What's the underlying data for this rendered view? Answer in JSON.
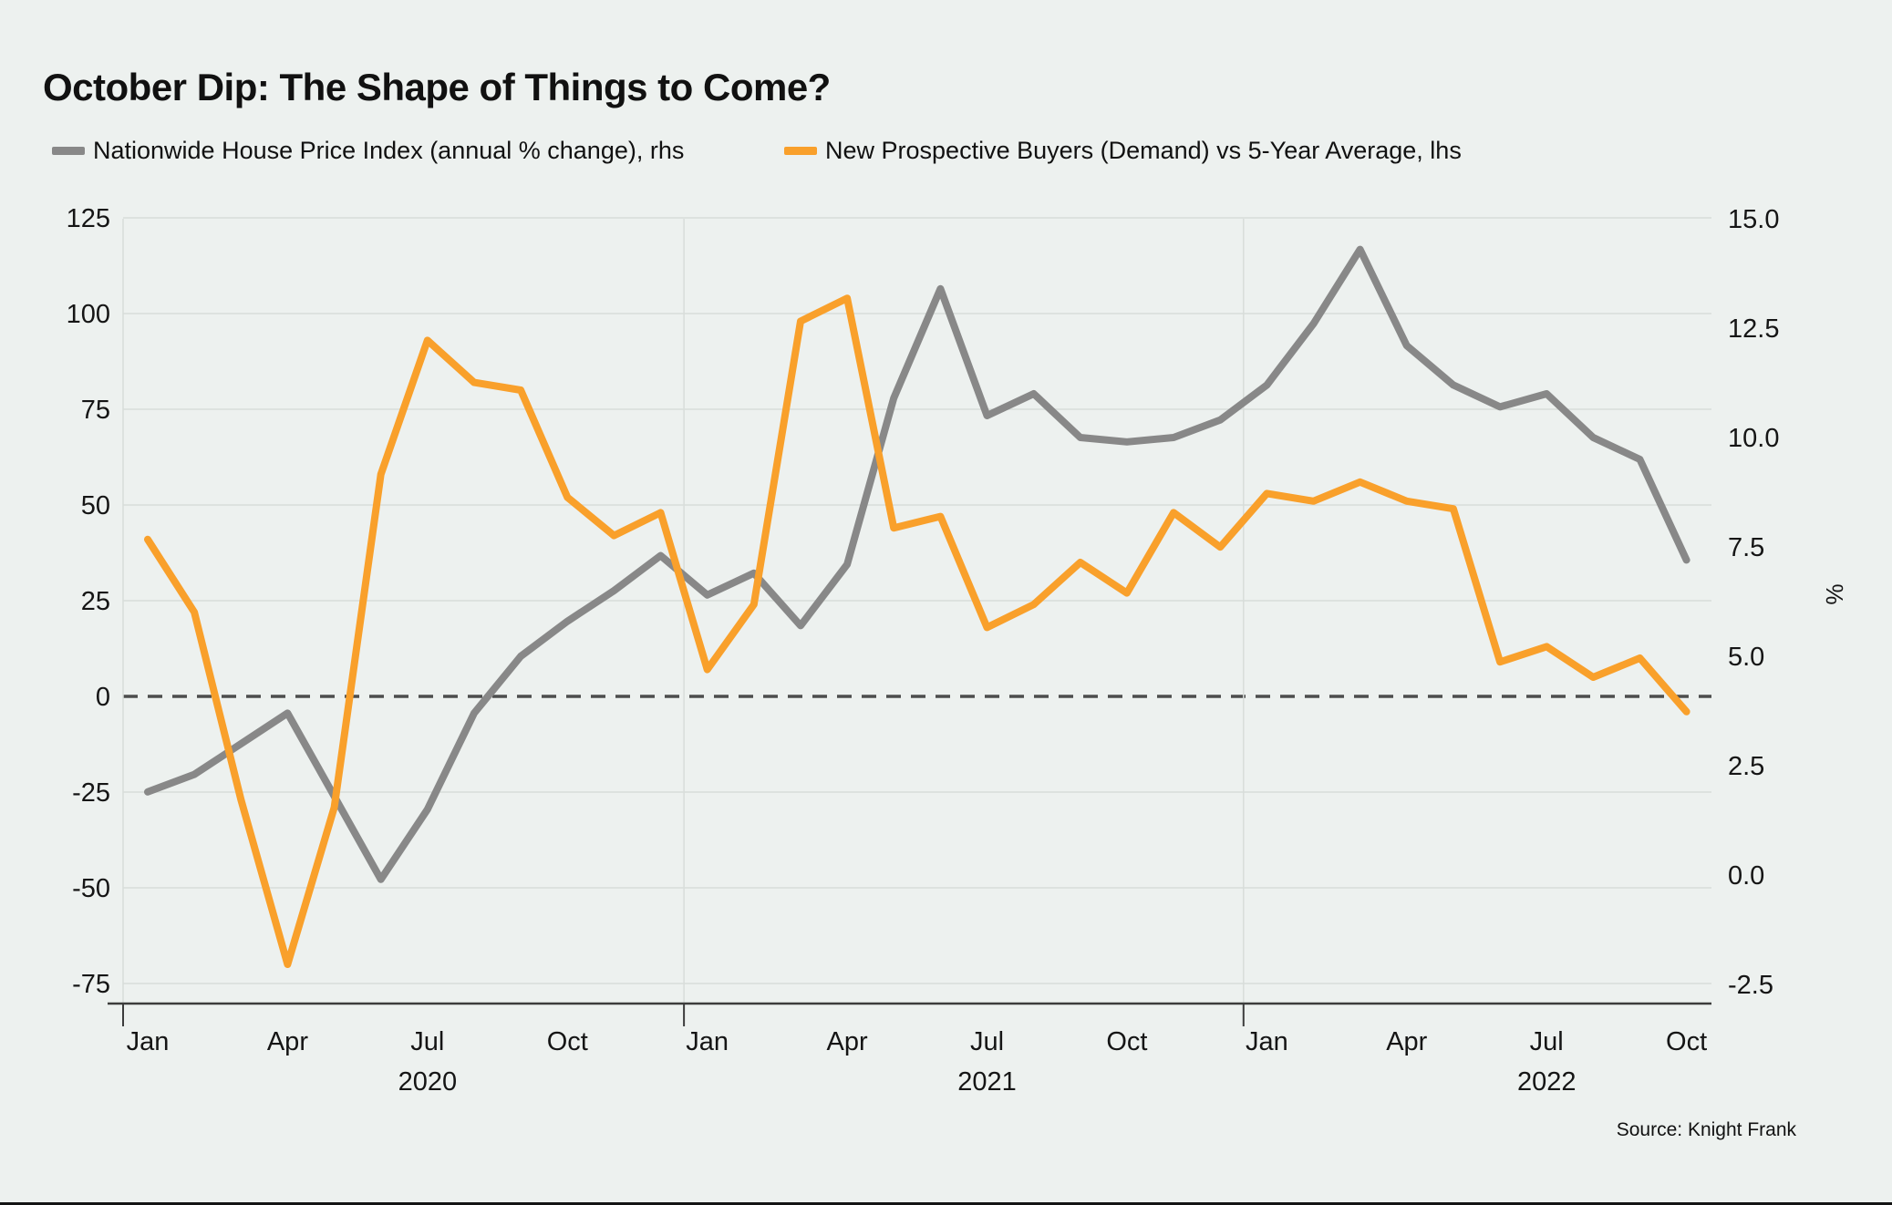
{
  "title": "October Dip: The Shape of Things to Come?",
  "source": "Source: Knight Frank",
  "colors": {
    "background": "#EDF1EF",
    "grid": "#D8DDDA",
    "zero_line": "#4D4D4D",
    "axis_spine": "#3C3C3C",
    "text": "#151515",
    "hpi_gray": "#888888",
    "demand_orange": "#F9A02B"
  },
  "legend": [
    {
      "label": "Nationwide House Price Index (annual % change), rhs",
      "color": "#888888"
    },
    {
      "label": "New Prospective Buyers (Demand) vs 5-Year Average, lhs",
      "color": "#F9A02B"
    }
  ],
  "chart_data": {
    "type": "line",
    "title": "October Dip: The Shape of Things to Come?",
    "categories": [
      "Jan 2020",
      "Feb 2020",
      "Mar 2020",
      "Apr 2020",
      "May 2020",
      "Jun 2020",
      "Jul 2020",
      "Aug 2020",
      "Sep 2020",
      "Oct 2020",
      "Nov 2020",
      "Dec 2020",
      "Jan 2021",
      "Feb 2021",
      "Mar 2021",
      "Apr 2021",
      "May 2021",
      "Jun 2021",
      "Jul 2021",
      "Aug 2021",
      "Sep 2021",
      "Oct 2021",
      "Nov 2021",
      "Dec 2021",
      "Jan 2022",
      "Feb 2022",
      "Mar 2022",
      "Apr 2022",
      "May 2022",
      "Jun 2022",
      "Jul 2022",
      "Aug 2022",
      "Sep 2022",
      "Oct 2022"
    ],
    "series": [
      {
        "name": "Nationwide House Price Index (annual % change)",
        "axis": "rhs",
        "color": "#888888",
        "values": [
          1.9,
          2.3,
          3.0,
          3.7,
          1.8,
          -0.1,
          1.5,
          3.7,
          5.0,
          5.8,
          6.5,
          7.3,
          6.4,
          6.9,
          5.7,
          7.1,
          10.9,
          13.4,
          10.5,
          11.0,
          10.0,
          9.9,
          10.0,
          10.4,
          11.2,
          12.6,
          14.3,
          12.1,
          11.2,
          10.7,
          11.0,
          10.0,
          9.5,
          7.2
        ]
      },
      {
        "name": "New Prospective Buyers (Demand) vs 5-Year Average",
        "axis": "lhs",
        "color": "#F9A02B",
        "values": [
          41,
          22,
          -27,
          -70,
          -29,
          58,
          93,
          82,
          80,
          52,
          42,
          48,
          7,
          24,
          98,
          104,
          44,
          47,
          18,
          24,
          35,
          27,
          48,
          39,
          53,
          51,
          56,
          51,
          49,
          9,
          13,
          5,
          10,
          -4
        ]
      }
    ],
    "left_axis": {
      "ticks": [
        125,
        100,
        75,
        50,
        25,
        0,
        -25,
        -50,
        -75
      ],
      "zero_line_style": "dashed"
    },
    "right_axis": {
      "ticks": [
        "15.0",
        "12.5",
        "10.0",
        "7.5",
        "5.0",
        "2.5",
        "0.0",
        "-2.5"
      ],
      "unit_label": "%"
    },
    "x_axis": {
      "month_tick_labels": [
        "Jan",
        "Apr",
        "Jul",
        "Oct",
        "Jan",
        "Apr",
        "Jul",
        "Oct",
        "Jan",
        "Apr",
        "Jul",
        "Oct"
      ],
      "month_tick_positions": [
        0,
        3,
        6,
        9,
        12,
        15,
        18,
        21,
        24,
        27,
        30,
        33
      ],
      "year_labels": [
        "2020",
        "2021",
        "2022"
      ],
      "year_label_positions": [
        6,
        18,
        30
      ],
      "year_boundary_months": [
        11.5,
        23.5
      ]
    },
    "grid": true,
    "legend_position": "top"
  }
}
